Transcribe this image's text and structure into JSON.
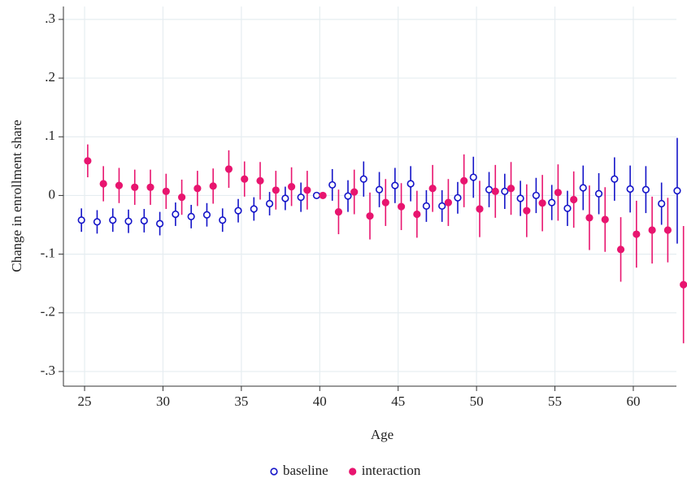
{
  "chart_data": {
    "type": "errorbar-scatter",
    "xlabel": "Age",
    "ylabel": "Change in enrollment share",
    "xlim": [
      23.65,
      62.75
    ],
    "ylim": [
      -0.325,
      0.322
    ],
    "xticks": [
      25,
      30,
      35,
      40,
      45,
      50,
      55,
      60
    ],
    "yticks": [
      {
        "value": -0.3,
        "label": "-.3"
      },
      {
        "value": -0.2,
        "label": "-.2"
      },
      {
        "value": -0.1,
        "label": "-.1"
      },
      0,
      {
        "value": 0.1,
        "label": ".1"
      },
      {
        "value": 0.2,
        "label": ".2"
      },
      {
        "value": 0.3,
        "label": ".3"
      }
    ],
    "grid": true,
    "series": [
      {
        "name": "baseline",
        "color": "#1414c8",
        "marker": "hollow",
        "x": [
          24.8,
          25.8,
          26.8,
          27.8,
          28.8,
          29.8,
          30.8,
          31.8,
          32.8,
          33.8,
          34.8,
          35.8,
          36.8,
          37.8,
          38.8,
          39.8,
          40.8,
          41.8,
          42.8,
          43.8,
          44.8,
          45.8,
          46.8,
          47.8,
          48.8,
          49.8,
          50.8,
          51.8,
          52.8,
          53.8,
          54.8,
          55.8,
          56.8,
          57.8,
          58.8,
          59.8,
          60.8,
          61.8,
          62.8
        ],
        "values": [
          -0.042,
          -0.045,
          -0.042,
          -0.044,
          -0.043,
          -0.048,
          -0.032,
          -0.036,
          -0.033,
          -0.042,
          -0.026,
          -0.023,
          -0.014,
          -0.005,
          -0.003,
          0,
          0.018,
          -0.001,
          0.028,
          0.01,
          0.017,
          0.02,
          -0.018,
          -0.018,
          -0.004,
          0.031,
          0.01,
          0.007,
          -0.005,
          0,
          -0.012,
          -0.022,
          0.013,
          0.003,
          0.028,
          0.011,
          0.01,
          -0.014,
          0.008
        ],
        "errors": [
          0.02,
          0.02,
          0.02,
          0.02,
          0.02,
          0.02,
          0.02,
          0.02,
          0.02,
          0.02,
          0.02,
          0.02,
          0.02,
          0.02,
          0.025,
          0,
          0.027,
          0.027,
          0.03,
          0.03,
          0.03,
          0.03,
          0.027,
          0.027,
          0.027,
          0.035,
          0.03,
          0.03,
          0.03,
          0.03,
          0.03,
          0.03,
          0.038,
          0.035,
          0.037,
          0.04,
          0.04,
          0.036,
          0.09
        ]
      },
      {
        "name": "interaction",
        "color": "#e8156f",
        "marker": "filled",
        "x": [
          25.2,
          26.2,
          27.2,
          28.2,
          29.2,
          30.2,
          31.2,
          32.2,
          33.2,
          34.2,
          35.2,
          36.2,
          37.2,
          38.2,
          39.2,
          40.2,
          41.2,
          42.2,
          43.2,
          44.2,
          45.2,
          46.2,
          47.2,
          48.2,
          49.2,
          50.2,
          51.2,
          52.2,
          53.2,
          54.2,
          55.2,
          56.2,
          57.2,
          58.2,
          59.2,
          60.2,
          61.2,
          62.2,
          63.2
        ],
        "values": [
          0.059,
          0.02,
          0.017,
          0.014,
          0.014,
          0.007,
          -0.003,
          0.012,
          0.016,
          0.045,
          0.028,
          0.025,
          0.009,
          0.015,
          0.009,
          0,
          -0.028,
          0.006,
          -0.035,
          -0.012,
          -0.019,
          -0.032,
          0.012,
          -0.012,
          0.025,
          -0.023,
          0.007,
          0.012,
          -0.026,
          -0.013,
          0.005,
          -0.007,
          -0.038,
          -0.041,
          -0.092,
          -0.066,
          -0.059,
          -0.059,
          -0.152
        ],
        "errors": [
          0.028,
          0.03,
          0.03,
          0.03,
          0.03,
          0.03,
          0.03,
          0.03,
          0.03,
          0.032,
          0.03,
          0.032,
          0.033,
          0.033,
          0.033,
          0,
          0.038,
          0.038,
          0.04,
          0.04,
          0.04,
          0.04,
          0.04,
          0.04,
          0.045,
          0.048,
          0.045,
          0.045,
          0.045,
          0.048,
          0.048,
          0.048,
          0.055,
          0.055,
          0.055,
          0.057,
          0.057,
          0.055,
          0.1
        ]
      }
    ]
  }
}
